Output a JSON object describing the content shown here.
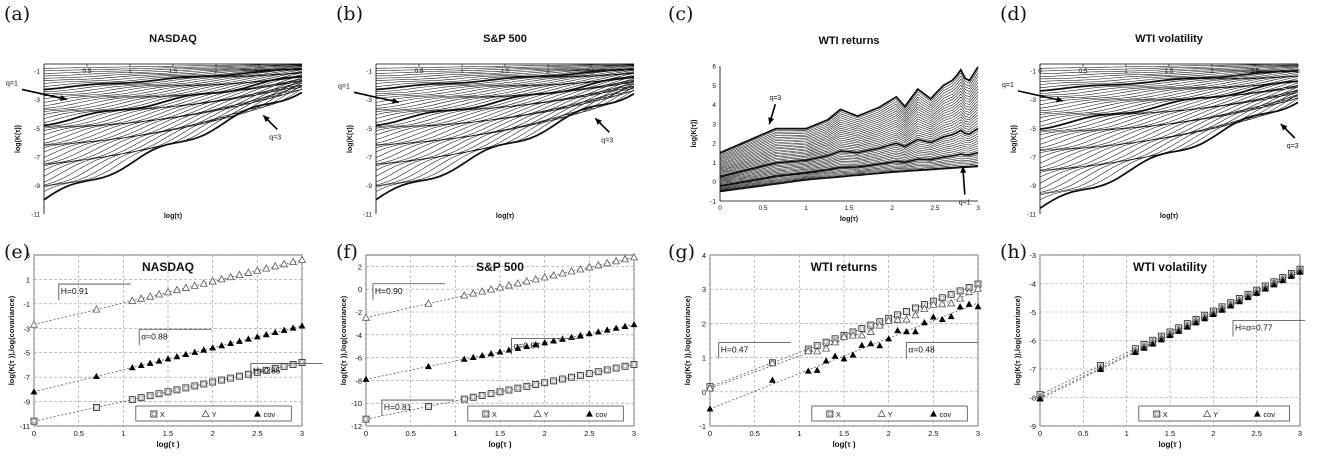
{
  "chart_data": [
    {
      "panel": "(a)",
      "type": "line",
      "title": "NASDAQ",
      "xlabel": "log(τ)",
      "ylabel": "log(K(τ))",
      "xlim": [
        0,
        3
      ],
      "ylim": [
        -11,
        -0.5
      ],
      "xticks": [
        "0.5",
        "1",
        "1.5",
        "2",
        "2.5"
      ],
      "yticks": [
        "-1",
        "-3",
        "-5",
        "-7",
        "-9",
        "-11"
      ],
      "xaxis_at_top": true,
      "grid": false,
      "families": {
        "count": 45,
        "q_min": 1,
        "q_max": 3,
        "left_low": -10.0,
        "left_high": -0.8,
        "right_low": -2.3,
        "right_high": -0.5,
        "bold": [
          1,
          2,
          3
        ]
      },
      "annotations": [
        {
          "text": "q=1",
          "x": 0.22,
          "y": -2.7
        },
        {
          "text": "q=3",
          "x": 2.55,
          "y": -4.8
        }
      ]
    },
    {
      "panel": "(b)",
      "type": "line",
      "title": "S&P 500",
      "xlabel": "log(τ)",
      "ylabel": "log(K(τ))",
      "xlim": [
        0,
        3
      ],
      "ylim": [
        -11,
        -0.5
      ],
      "xticks": [
        "0.5",
        "1",
        "1.5",
        "2",
        "2.5"
      ],
      "yticks": [
        "-1",
        "-3",
        "-5",
        "-7",
        "-9",
        "-11"
      ],
      "xaxis_at_top": true,
      "grid": false,
      "families": {
        "count": 45,
        "q_min": 1,
        "q_max": 3,
        "left_low": -10.0,
        "left_high": -0.8,
        "right_low": -2.4,
        "right_high": -0.5,
        "bold": [
          1,
          2,
          3
        ]
      },
      "annotations": [
        {
          "text": "q=1",
          "x": 0.22,
          "y": -2.9
        },
        {
          "text": "q=3",
          "x": 2.55,
          "y": -5.0
        }
      ]
    },
    {
      "panel": "(c)",
      "type": "line",
      "title": "WTI returns",
      "xlabel": "log(τ)",
      "ylabel": "log(K(τ))",
      "xlim": [
        0,
        3
      ],
      "ylim": [
        -1,
        6
      ],
      "xticks": [
        "0",
        "0.5",
        "1",
        "1.5",
        "2",
        "2.5",
        "3"
      ],
      "yticks": [
        "6",
        "5",
        "4",
        "3",
        "2",
        "1",
        "0",
        "-1"
      ],
      "xaxis_at_top": false,
      "grid": false,
      "top_curve": [
        [
          0,
          1.5
        ],
        [
          0.65,
          2.75
        ],
        [
          1.0,
          2.75
        ],
        [
          1.25,
          3.2
        ],
        [
          1.4,
          3.75
        ],
        [
          1.6,
          3.4
        ],
        [
          1.85,
          3.85
        ],
        [
          2.05,
          4.4
        ],
        [
          2.15,
          3.9
        ],
        [
          2.3,
          4.8
        ],
        [
          2.45,
          4.3
        ],
        [
          2.6,
          5.0
        ],
        [
          2.72,
          5.3
        ],
        [
          2.8,
          5.8
        ],
        [
          2.88,
          5.1
        ],
        [
          3.0,
          5.95
        ]
      ],
      "bottom_curve": [
        [
          0,
          -0.5
        ],
        [
          1.0,
          0.1
        ],
        [
          2.0,
          0.5
        ],
        [
          3.0,
          0.8
        ]
      ],
      "families": {
        "count": 40,
        "bold": [
          1,
          2,
          3
        ]
      },
      "annotations": [
        {
          "text": "q=3",
          "x": 0.62,
          "y": 3.5
        },
        {
          "text": "q=1",
          "x": 2.8,
          "y": -0.45
        }
      ]
    },
    {
      "panel": "(d)",
      "type": "line",
      "title": "WTI volatility",
      "xlabel": "log(τ)",
      "ylabel": "log(K(τ))",
      "xlim": [
        0,
        3
      ],
      "ylim": [
        -11,
        -0.5
      ],
      "xticks": [
        "0",
        "0.5",
        "1",
        "1.5",
        "2",
        "2.5",
        "3"
      ],
      "yticks": [
        "-1",
        "-3",
        "-5",
        "-7",
        "-9",
        "-11"
      ],
      "xaxis_at_top": true,
      "grid": false,
      "families": {
        "count": 45,
        "q_min": 1,
        "q_max": 3,
        "left_low": -10.6,
        "left_high": -0.8,
        "right_low": -3.0,
        "right_high": -0.5,
        "bold": [
          1,
          2,
          3
        ]
      },
      "annotations": [
        {
          "text": "q=1",
          "x": 0.22,
          "y": -2.8
        },
        {
          "text": "q=3",
          "x": 2.8,
          "y": -5.4
        }
      ]
    },
    {
      "panel": "(e)",
      "type": "scatter",
      "title": "NASDAQ",
      "xlabel": "log(τ )",
      "ylabel": "log(K(τ )),log(covariance)",
      "xlim": [
        0,
        3
      ],
      "ylim": [
        -11,
        3
      ],
      "xticks": [
        "0",
        "0.5",
        "1",
        "1.5",
        "2",
        "2.5",
        "3"
      ],
      "yticks": [
        "3",
        "1",
        "-1",
        "-3",
        "-5",
        "-7",
        "-9",
        "-11"
      ],
      "grid": true,
      "series": [
        {
          "name": "X",
          "marker": "square",
          "start": -10.6,
          "end": -5.8
        },
        {
          "name": "Y",
          "marker": "triangle-open",
          "start": -2.7,
          "end": 2.6
        },
        {
          "name": "cov",
          "marker": "triangle-filled",
          "start": -8.2,
          "end": -2.8
        }
      ],
      "annotations": [
        {
          "text": "H=0.91",
          "x": 0.3,
          "y": -0.2
        },
        {
          "text": "α=0.88",
          "x": 1.2,
          "y": -3.9
        },
        {
          "text": "H=0.85",
          "x": 2.45,
          "y": -6.7
        }
      ]
    },
    {
      "panel": "(f)",
      "type": "scatter",
      "title": "S&P 500",
      "xlabel": "log(τ )",
      "ylabel": "log(K(τ )),log(covariance)",
      "xlim": [
        0,
        3
      ],
      "ylim": [
        -12,
        3
      ],
      "xticks": [
        "0",
        "0.5",
        "1",
        "1.5",
        "2",
        "2.5",
        "3"
      ],
      "yticks": [
        "2",
        "0",
        "-2",
        "-4",
        "-6",
        "-8",
        "-10",
        "-12"
      ],
      "grid": true,
      "series": [
        {
          "name": "X",
          "marker": "square",
          "start": -11.4,
          "end": -6.6
        },
        {
          "name": "Y",
          "marker": "triangle-open",
          "start": -2.5,
          "end": 2.8
        },
        {
          "name": "cov",
          "marker": "triangle-filled",
          "start": -7.9,
          "end": -3.1
        }
      ],
      "annotations": [
        {
          "text": "H=0.90",
          "x": 0.1,
          "y": -0.4
        },
        {
          "text": "α=0.84",
          "x": 1.65,
          "y": -5.2
        },
        {
          "text": "H=0.81",
          "x": 0.2,
          "y": -10.6
        }
      ]
    },
    {
      "panel": "(g)",
      "type": "scatter",
      "title": "WTI returns",
      "xlabel": "log(τ )",
      "ylabel": "log(K(τ )),log(covariance)",
      "xlim": [
        0,
        3
      ],
      "ylim": [
        -1,
        4
      ],
      "xticks": [
        "0",
        "0.5",
        "1",
        "1.5",
        "2",
        "2.5",
        "3"
      ],
      "yticks": [
        "4",
        "3",
        "2",
        "1",
        "0",
        "-1"
      ],
      "grid": true,
      "series": [
        {
          "name": "X",
          "marker": "square",
          "start": 0.15,
          "end": 3.15
        },
        {
          "name": "Y",
          "marker": "triangle-open",
          "start": 0.1,
          "end": 2.95
        },
        {
          "name": "cov",
          "marker": "triangle-filled",
          "start": -0.5,
          "end": 2.6
        }
      ],
      "annotations": [
        {
          "text": "H=0.47",
          "x": 0.12,
          "y": 1.15
        },
        {
          "text": "α=0.48",
          "x": 2.22,
          "y": 1.15
        }
      ]
    },
    {
      "panel": "(h)",
      "type": "scatter",
      "title": "WTI volatility",
      "xlabel": "log(τ )",
      "ylabel": "log(K(τ )),log(covariance)",
      "xlim": [
        0,
        3
      ],
      "ylim": [
        -9,
        -3
      ],
      "xticks": [
        "0",
        "0.5",
        "1",
        "1.5",
        "2",
        "2.5",
        "3"
      ],
      "yticks": [
        "-3",
        "-4",
        "-5",
        "-6",
        "-7",
        "-8",
        "-9"
      ],
      "grid": true,
      "series": [
        {
          "name": "X",
          "marker": "square",
          "start": -7.9,
          "end": -3.5
        },
        {
          "name": "Y",
          "marker": "triangle-open",
          "start": -8.0,
          "end": -3.55
        },
        {
          "name": "cov",
          "marker": "triangle-filled",
          "start": -8.05,
          "end": -3.6
        }
      ],
      "annotations": [
        {
          "text": "H=α=0.77",
          "x": 2.25,
          "y": -5.65
        }
      ]
    }
  ]
}
